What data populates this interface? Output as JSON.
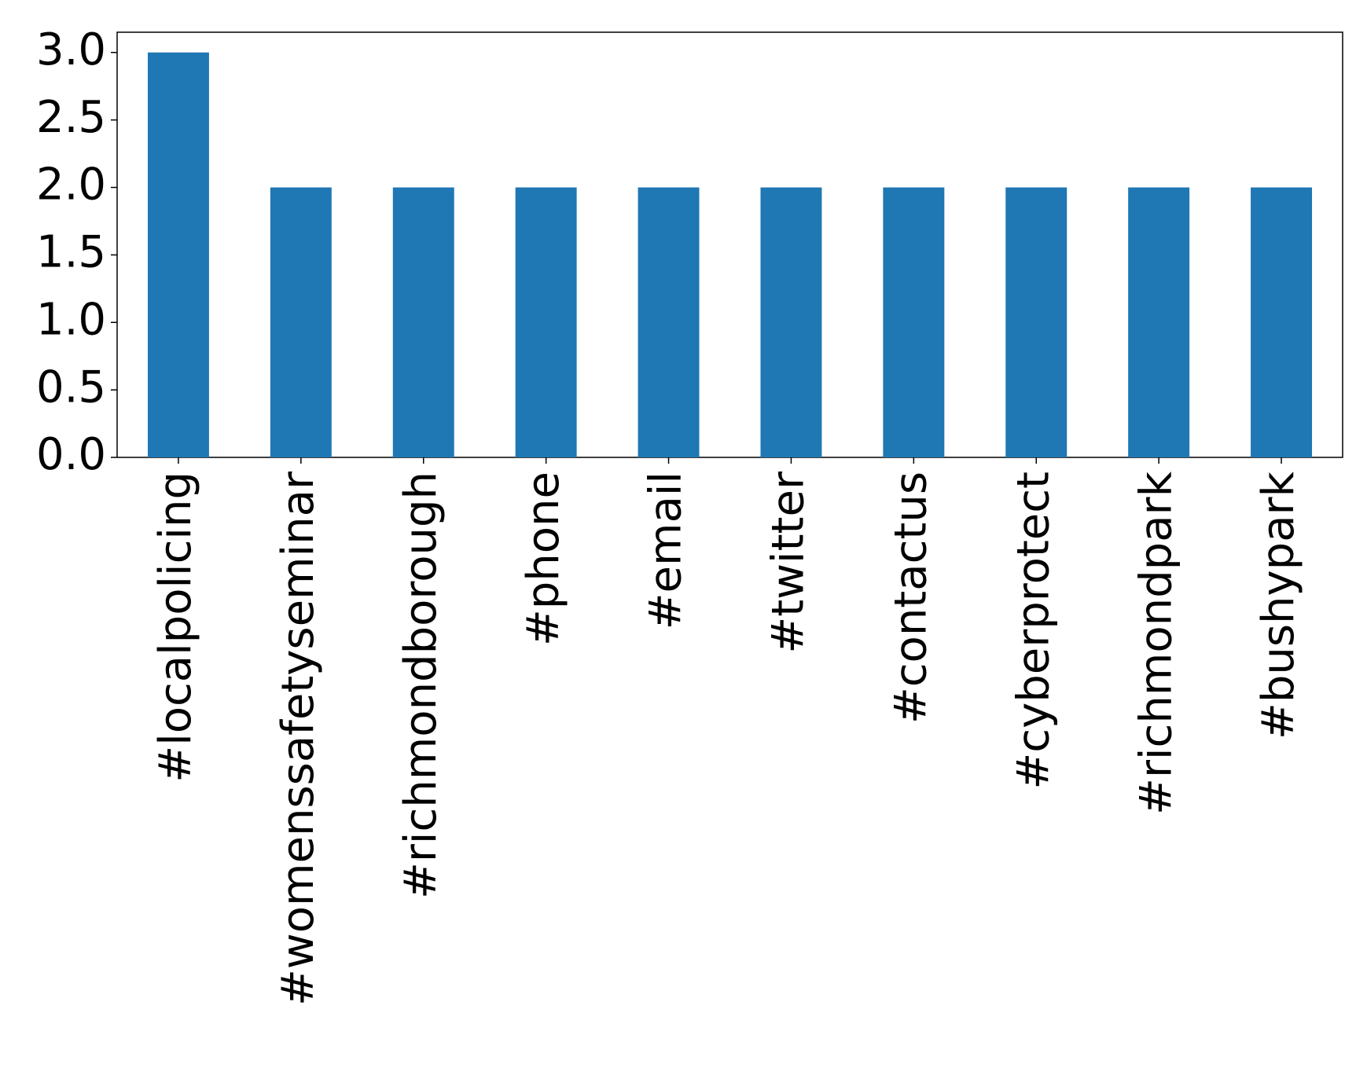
{
  "chart_data": {
    "type": "bar",
    "categories": [
      "#localpolicing",
      "#womenssafetyseminar",
      "#richmondborough",
      "#phone",
      "#email",
      "#twitter",
      "#contactus",
      "#cyberprotect",
      "#richmondpark",
      "#bushypark"
    ],
    "values": [
      3,
      2,
      2,
      2,
      2,
      2,
      2,
      2,
      2,
      2
    ],
    "color": "#1f77b4",
    "ylim": [
      0,
      3.15
    ],
    "yticks": [
      {
        "value": 0,
        "label": "0.0"
      },
      {
        "value": 0.5,
        "label": "0.5"
      },
      {
        "value": 1,
        "label": "1.0"
      },
      {
        "value": 1.5,
        "label": "1.5"
      },
      {
        "value": 2,
        "label": "2.0"
      },
      {
        "value": 2.5,
        "label": "2.5"
      },
      {
        "value": 3,
        "label": "3.0"
      }
    ],
    "grid": false
  }
}
